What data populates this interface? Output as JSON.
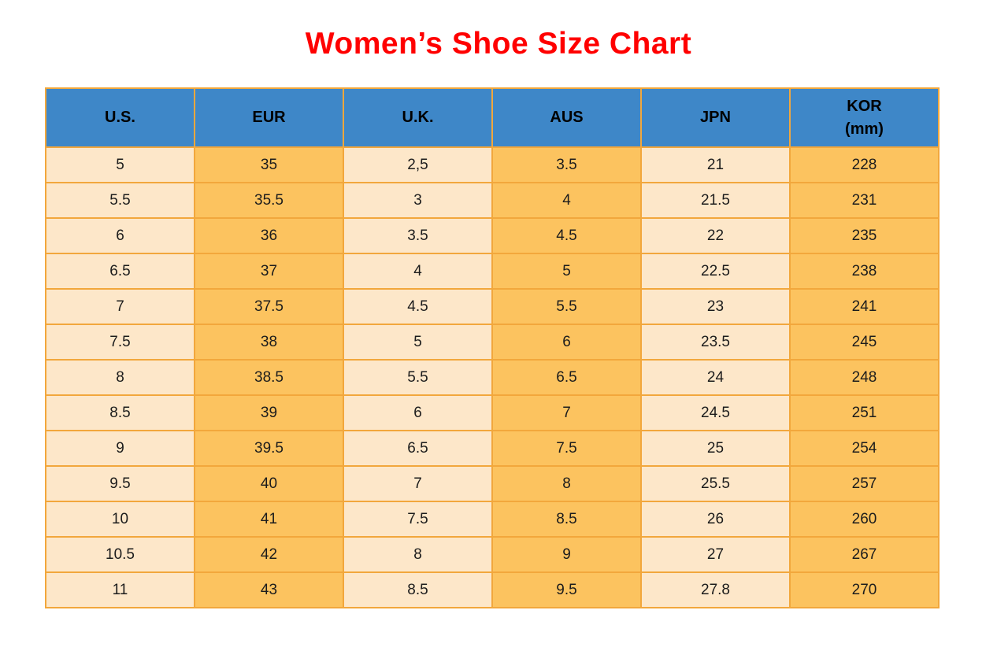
{
  "page": {
    "title": "Women’s Shoe Size Chart"
  },
  "colors": {
    "title_text": "#FF0000",
    "header_bg": "#3E87C8",
    "column_light_bg": "#FDE7C9",
    "column_orange_bg": "#FCC35F",
    "grid_border": "#F2A73C",
    "header_text": "#000000",
    "cell_text": "#1C1C1C"
  },
  "chart_data": {
    "type": "table",
    "title": "Women’s Shoe Size Chart",
    "headers": [
      "U.S.",
      "EUR",
      "U.K.",
      "AUS",
      "JPN",
      "KOR\n(mm)"
    ],
    "column_styles": [
      "light",
      "orange",
      "light",
      "orange",
      "light",
      "orange"
    ],
    "rows": [
      [
        "5",
        "35",
        "2,5",
        "3.5",
        "21",
        "228"
      ],
      [
        "5.5",
        "35.5",
        "3",
        "4",
        "21.5",
        "231"
      ],
      [
        "6",
        "36",
        "3.5",
        "4.5",
        "22",
        "235"
      ],
      [
        "6.5",
        "37",
        "4",
        "5",
        "22.5",
        "238"
      ],
      [
        "7",
        "37.5",
        "4.5",
        "5.5",
        "23",
        "241"
      ],
      [
        "7.5",
        "38",
        "5",
        "6",
        "23.5",
        "245"
      ],
      [
        "8",
        "38.5",
        "5.5",
        "6.5",
        "24",
        "248"
      ],
      [
        "8.5",
        "39",
        "6",
        "7",
        "24.5",
        "251"
      ],
      [
        "9",
        "39.5",
        "6.5",
        "7.5",
        "25",
        "254"
      ],
      [
        "9.5",
        "40",
        "7",
        "8",
        "25.5",
        "257"
      ],
      [
        "10",
        "41",
        "7.5",
        "8.5",
        "26",
        "260"
      ],
      [
        "10.5",
        "42",
        "8",
        "9",
        "27",
        "267"
      ],
      [
        "11",
        "43",
        "8.5",
        "9.5",
        "27.8",
        "270"
      ]
    ]
  }
}
